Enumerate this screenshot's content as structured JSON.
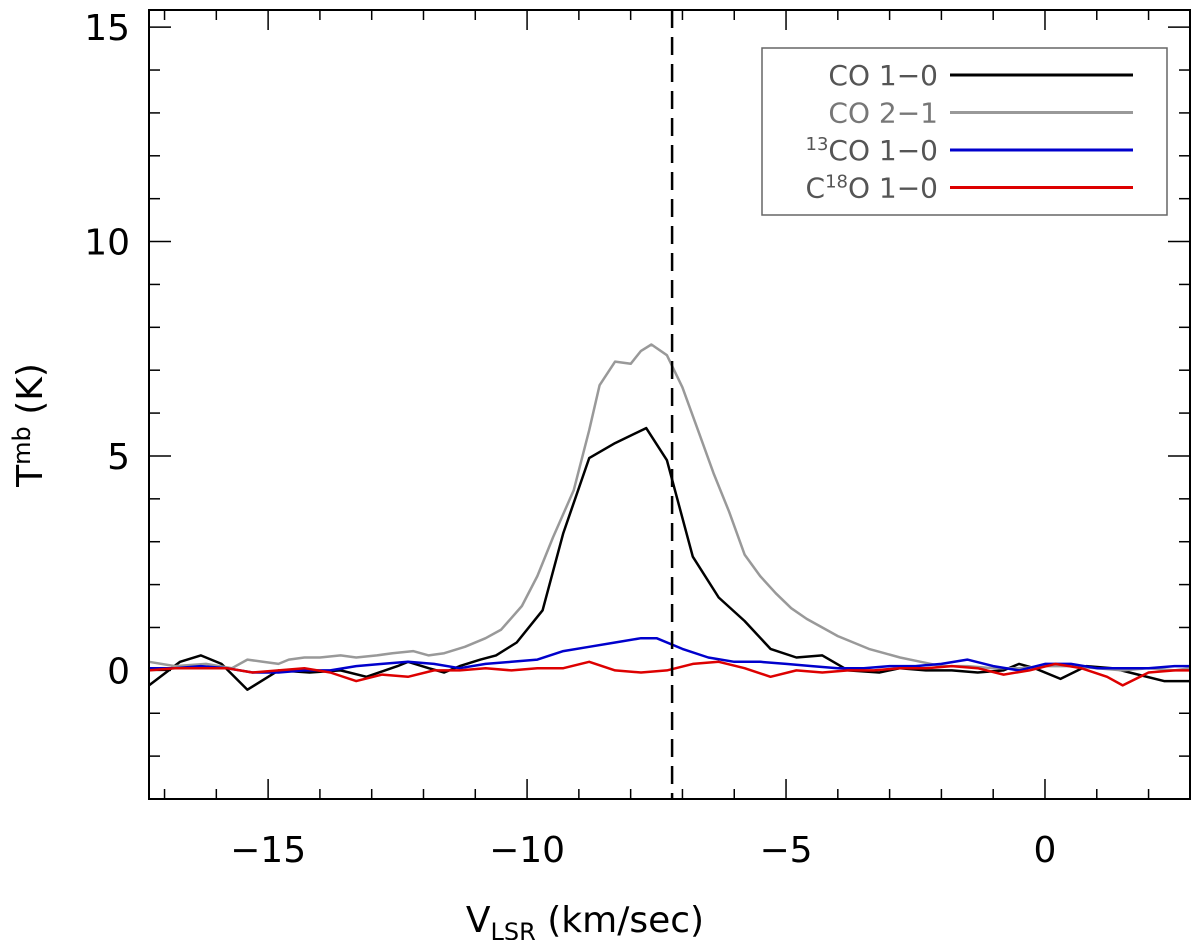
{
  "chart_data": {
    "type": "line",
    "xlabel": {
      "main": "V",
      "sub": "LSR",
      "suffix": " (km/sec)"
    },
    "ylabel": {
      "main": "T",
      "sub": "mb",
      "suffix": " (K)"
    },
    "xlim": [
      -17.3,
      2.8
    ],
    "ylim": [
      -3,
      15.4
    ],
    "x_ticks": [
      -15,
      -10,
      -5,
      0
    ],
    "x_tick_labels": [
      "−15",
      "−10",
      "−5",
      "0"
    ],
    "y_ticks": [
      0,
      5,
      10,
      15
    ],
    "y_tick_labels": [
      "0",
      "5",
      "10",
      "15"
    ],
    "x_minor_step": 1,
    "y_minor_step": 1,
    "vline": -7.2,
    "legend_position": "top-right",
    "grid": false,
    "series": [
      {
        "name": "CO 1−0",
        "label_parts": [
          {
            "t": "CO 1−0"
          }
        ],
        "color": "#000000",
        "points": [
          [
            -17.3,
            -0.35
          ],
          [
            -16.7,
            0.2
          ],
          [
            -16.3,
            0.35
          ],
          [
            -15.9,
            0.15
          ],
          [
            -15.4,
            -0.45
          ],
          [
            -14.8,
            0.0
          ],
          [
            -14.2,
            -0.05
          ],
          [
            -13.6,
            0.0
          ],
          [
            -13.1,
            -0.15
          ],
          [
            -12.5,
            0.1
          ],
          [
            -12.3,
            0.2
          ],
          [
            -11.9,
            0.05
          ],
          [
            -11.6,
            -0.05
          ],
          [
            -11.3,
            0.1
          ],
          [
            -10.9,
            0.25
          ],
          [
            -10.6,
            0.35
          ],
          [
            -10.2,
            0.65
          ],
          [
            -9.7,
            1.4
          ],
          [
            -9.3,
            3.2
          ],
          [
            -8.8,
            4.95
          ],
          [
            -8.3,
            5.3
          ],
          [
            -7.7,
            5.65
          ],
          [
            -7.3,
            4.9
          ],
          [
            -6.8,
            2.65
          ],
          [
            -6.3,
            1.7
          ],
          [
            -5.8,
            1.15
          ],
          [
            -5.3,
            0.5
          ],
          [
            -4.8,
            0.3
          ],
          [
            -4.3,
            0.35
          ],
          [
            -3.8,
            0.0
          ],
          [
            -3.2,
            -0.05
          ],
          [
            -2.8,
            0.05
          ],
          [
            -2.3,
            0.0
          ],
          [
            -1.8,
            0.0
          ],
          [
            -1.3,
            -0.05
          ],
          [
            -0.8,
            0.0
          ],
          [
            -0.5,
            0.15
          ],
          [
            -0.2,
            0.05
          ],
          [
            0.3,
            -0.2
          ],
          [
            0.8,
            0.1
          ],
          [
            1.3,
            0.05
          ],
          [
            1.8,
            -0.1
          ],
          [
            2.3,
            -0.25
          ],
          [
            2.8,
            -0.25
          ]
        ]
      },
      {
        "name": "CO 2−1",
        "label_parts": [
          {
            "t": "CO 2−1"
          }
        ],
        "color": "#999999",
        "points": [
          [
            -17.3,
            0.2
          ],
          [
            -16.8,
            0.1
          ],
          [
            -16.2,
            0.15
          ],
          [
            -15.7,
            0.05
          ],
          [
            -15.4,
            0.25
          ],
          [
            -15.1,
            0.2
          ],
          [
            -14.8,
            0.15
          ],
          [
            -14.6,
            0.25
          ],
          [
            -14.3,
            0.3
          ],
          [
            -14.0,
            0.3
          ],
          [
            -13.6,
            0.35
          ],
          [
            -13.3,
            0.3
          ],
          [
            -12.9,
            0.35
          ],
          [
            -12.6,
            0.4
          ],
          [
            -12.2,
            0.45
          ],
          [
            -11.9,
            0.35
          ],
          [
            -11.6,
            0.4
          ],
          [
            -11.2,
            0.55
          ],
          [
            -10.8,
            0.75
          ],
          [
            -10.5,
            0.95
          ],
          [
            -10.1,
            1.5
          ],
          [
            -9.8,
            2.2
          ],
          [
            -9.5,
            3.1
          ],
          [
            -9.1,
            4.2
          ],
          [
            -8.8,
            5.6
          ],
          [
            -8.6,
            6.65
          ],
          [
            -8.3,
            7.2
          ],
          [
            -8.0,
            7.15
          ],
          [
            -7.8,
            7.45
          ],
          [
            -7.6,
            7.6
          ],
          [
            -7.3,
            7.35
          ],
          [
            -7.0,
            6.6
          ],
          [
            -6.7,
            5.6
          ],
          [
            -6.4,
            4.6
          ],
          [
            -6.1,
            3.7
          ],
          [
            -5.8,
            2.7
          ],
          [
            -5.5,
            2.2
          ],
          [
            -5.2,
            1.8
          ],
          [
            -4.9,
            1.45
          ],
          [
            -4.6,
            1.2
          ],
          [
            -4.3,
            1.0
          ],
          [
            -4.0,
            0.8
          ],
          [
            -3.7,
            0.65
          ],
          [
            -3.4,
            0.5
          ],
          [
            -3.1,
            0.4
          ],
          [
            -2.8,
            0.3
          ],
          [
            -2.4,
            0.2
          ],
          [
            -2.0,
            0.1
          ],
          [
            -1.5,
            0.1
          ],
          [
            -1.0,
            0.05
          ],
          [
            -0.5,
            0.05
          ],
          [
            0.0,
            0.1
          ],
          [
            0.5,
            0.1
          ],
          [
            1.0,
            0.05
          ],
          [
            1.5,
            0.0
          ],
          [
            2.0,
            0.05
          ],
          [
            2.5,
            0.0
          ],
          [
            2.8,
            0.05
          ]
        ]
      },
      {
        "name": "13CO 1−0",
        "label_parts": [
          {
            "t": "13",
            "sup": true
          },
          {
            "t": "CO 1−0"
          }
        ],
        "color": "#0000cc",
        "points": [
          [
            -17.3,
            0.05
          ],
          [
            -16.8,
            0.05
          ],
          [
            -16.3,
            0.1
          ],
          [
            -15.8,
            0.05
          ],
          [
            -15.3,
            -0.05
          ],
          [
            -14.8,
            -0.05
          ],
          [
            -14.3,
            0.0
          ],
          [
            -13.8,
            0.0
          ],
          [
            -13.3,
            0.1
          ],
          [
            -12.8,
            0.15
          ],
          [
            -12.3,
            0.2
          ],
          [
            -11.8,
            0.15
          ],
          [
            -11.3,
            0.05
          ],
          [
            -10.8,
            0.15
          ],
          [
            -10.3,
            0.2
          ],
          [
            -9.8,
            0.25
          ],
          [
            -9.3,
            0.45
          ],
          [
            -8.8,
            0.55
          ],
          [
            -8.3,
            0.65
          ],
          [
            -7.8,
            0.75
          ],
          [
            -7.5,
            0.75
          ],
          [
            -7.0,
            0.5
          ],
          [
            -6.5,
            0.3
          ],
          [
            -6.0,
            0.2
          ],
          [
            -5.5,
            0.2
          ],
          [
            -5.0,
            0.15
          ],
          [
            -4.5,
            0.1
          ],
          [
            -4.0,
            0.05
          ],
          [
            -3.5,
            0.05
          ],
          [
            -3.0,
            0.1
          ],
          [
            -2.5,
            0.1
          ],
          [
            -2.0,
            0.15
          ],
          [
            -1.5,
            0.25
          ],
          [
            -1.0,
            0.1
          ],
          [
            -0.5,
            0.0
          ],
          [
            0.0,
            0.15
          ],
          [
            0.5,
            0.15
          ],
          [
            1.0,
            0.05
          ],
          [
            1.5,
            0.05
          ],
          [
            2.0,
            0.05
          ],
          [
            2.5,
            0.1
          ],
          [
            2.8,
            0.1
          ]
        ]
      },
      {
        "name": "C18O 1−0",
        "label_parts": [
          {
            "t": "C"
          },
          {
            "t": "18",
            "sup": true
          },
          {
            "t": "O 1−0"
          }
        ],
        "color": "#dd0000",
        "points": [
          [
            -17.3,
            0.0
          ],
          [
            -16.8,
            0.05
          ],
          [
            -16.3,
            0.05
          ],
          [
            -15.8,
            0.05
          ],
          [
            -15.3,
            -0.05
          ],
          [
            -14.8,
            0.0
          ],
          [
            -14.3,
            0.05
          ],
          [
            -13.8,
            -0.05
          ],
          [
            -13.3,
            -0.25
          ],
          [
            -12.8,
            -0.1
          ],
          [
            -12.3,
            -0.15
          ],
          [
            -11.8,
            0.0
          ],
          [
            -11.3,
            0.0
          ],
          [
            -10.8,
            0.05
          ],
          [
            -10.3,
            0.0
          ],
          [
            -9.8,
            0.05
          ],
          [
            -9.3,
            0.05
          ],
          [
            -8.8,
            0.2
          ],
          [
            -8.3,
            0.0
          ],
          [
            -7.8,
            -0.05
          ],
          [
            -7.3,
            0.0
          ],
          [
            -6.8,
            0.15
          ],
          [
            -6.3,
            0.2
          ],
          [
            -5.8,
            0.05
          ],
          [
            -5.3,
            -0.15
          ],
          [
            -4.8,
            0.0
          ],
          [
            -4.3,
            -0.05
          ],
          [
            -3.8,
            0.0
          ],
          [
            -3.3,
            0.0
          ],
          [
            -2.8,
            0.05
          ],
          [
            -2.3,
            0.05
          ],
          [
            -1.8,
            0.1
          ],
          [
            -1.3,
            0.05
          ],
          [
            -0.8,
            -0.1
          ],
          [
            -0.3,
            0.0
          ],
          [
            0.2,
            0.15
          ],
          [
            0.7,
            0.05
          ],
          [
            1.2,
            -0.15
          ],
          [
            1.5,
            -0.35
          ],
          [
            2.0,
            -0.05
          ],
          [
            2.5,
            0.0
          ],
          [
            2.8,
            0.0
          ]
        ]
      }
    ]
  }
}
